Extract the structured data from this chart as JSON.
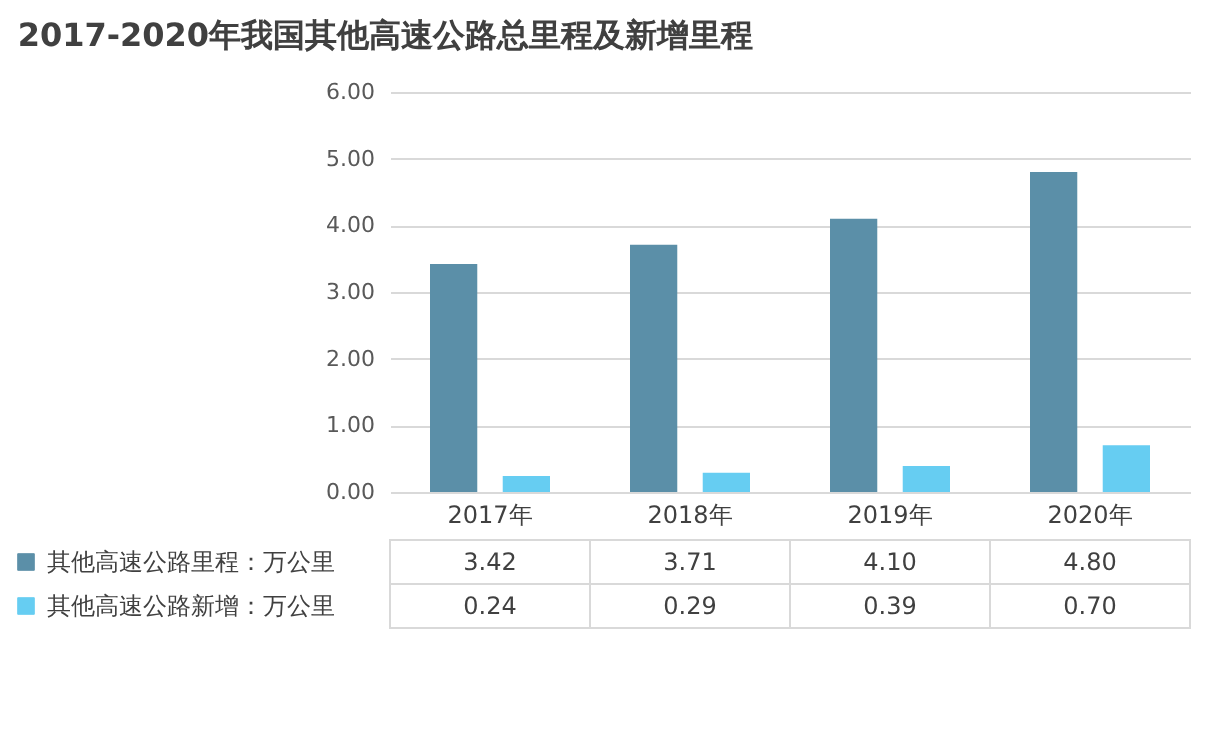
{
  "chart_data": {
    "type": "bar",
    "title": "2017-2020年我国其他高速公路总里程及新增里程",
    "categories": [
      "2017年",
      "2018年",
      "2019年",
      "2020年"
    ],
    "series": [
      {
        "name": "其他高速公路里程：万公里",
        "color": "#5b8fa8",
        "values": [
          3.42,
          3.71,
          4.1,
          4.8
        ],
        "value_labels": [
          "3.42",
          "3.71",
          "4.10",
          "4.80"
        ]
      },
      {
        "name": "其他高速公路新增：万公里",
        "color": "#66cdf2",
        "values": [
          0.24,
          0.29,
          0.39,
          0.7
        ],
        "value_labels": [
          "0.24",
          "0.29",
          "0.39",
          "0.70"
        ]
      }
    ],
    "ylim": [
      0,
      6
    ],
    "yticks": [
      {
        "value": 0,
        "label": "0.00"
      },
      {
        "value": 1,
        "label": "1.00"
      },
      {
        "value": 2,
        "label": "2.00"
      },
      {
        "value": 3,
        "label": "3.00"
      },
      {
        "value": 4,
        "label": "4.00"
      },
      {
        "value": 5,
        "label": "5.00"
      },
      {
        "value": 6,
        "label": "6.00"
      }
    ],
    "grid": "y",
    "legend": "bottom left"
  }
}
